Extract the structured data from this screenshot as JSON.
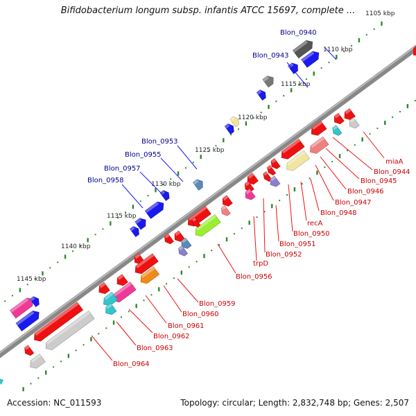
{
  "title": "Bifidobacterium longum subsp. infantis ATCC 15697, complete ...",
  "footer": {
    "accession": "Accession: NC_011593",
    "summary": "Topology: circular; Length: 2,832,748 bp; Genes: 2,507"
  },
  "colors": {
    "red": "#ee1111",
    "blue": "#1a1aee",
    "gray": "#777777",
    "lightgray": "#cccccc",
    "tan": "#efe5a0",
    "pink": "#ee3a96",
    "cyan": "#33c4cc",
    "green": "#9aee33",
    "steel": "#5a8ab5",
    "lavender": "#8a80cc",
    "salmon": "#ef8080",
    "orange": "#f08a1a",
    "darkgray": "#555555",
    "tick": "#2a8a2a",
    "label_forward": "#00008b",
    "label_reverse": "#cc0000"
  },
  "scale_labels": [
    "1105 kbp",
    "1110 kbp",
    "1115 kbp",
    "1120 kbp",
    "1125 kbp",
    "1130 kbp",
    "1135 kbp",
    "1140 kbp",
    "1145 kbp"
  ],
  "forward_labels": [
    "Blon_0940",
    "Blon_0943",
    "Blon_0953",
    "Blon_0955",
    "Blon_0957",
    "Blon_0958"
  ],
  "reverse_labels": [
    "miaA",
    "Blon_0944",
    "Blon_0945",
    "Blon_0946",
    "Blon_0947",
    "Blon_0948",
    "recA",
    "Blon_0950",
    "Blon_0951",
    "Blon_0952",
    "trpD",
    "Blon_0956",
    "Blon_0959",
    "Blon_0960",
    "Blon_0961",
    "Blon_0962",
    "Blon_0963",
    "Blon_0964"
  ]
}
